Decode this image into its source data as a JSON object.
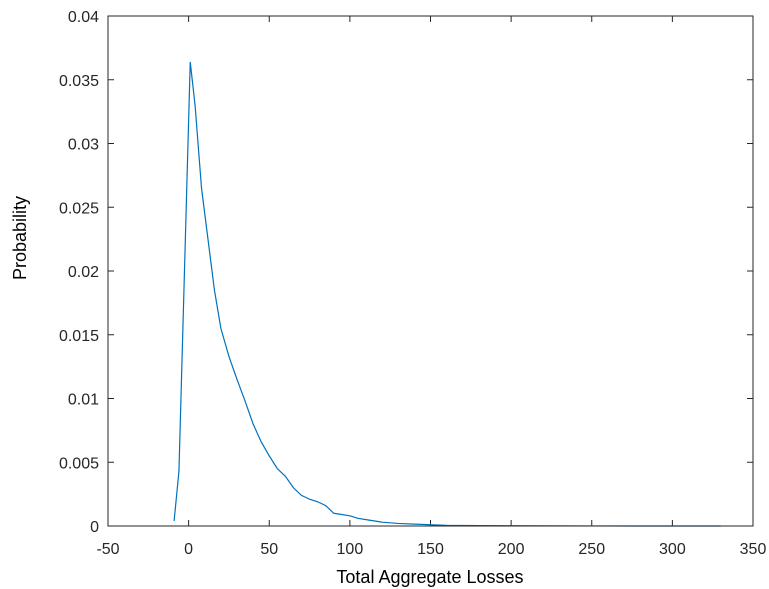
{
  "chart_data": {
    "type": "line",
    "title": "",
    "xlabel": "Total Aggregate Losses",
    "ylabel": "Probability",
    "xlim": [
      -50,
      350
    ],
    "ylim": [
      0,
      0.04
    ],
    "xticks": [
      -50,
      0,
      50,
      100,
      150,
      200,
      250,
      300,
      350
    ],
    "yticks": [
      0,
      0.005,
      0.01,
      0.015,
      0.02,
      0.025,
      0.03,
      0.035,
      0.04
    ],
    "xtick_labels": [
      "-50",
      "0",
      "50",
      "100",
      "150",
      "200",
      "250",
      "300",
      "350"
    ],
    "ytick_labels": [
      "0",
      "0.005",
      "0.01",
      "0.015",
      "0.02",
      "0.025",
      "0.03",
      "0.035",
      "0.04"
    ],
    "grid": false,
    "line_color": "#0072BD",
    "series": [
      {
        "x": [
          -9,
          -6,
          1,
          4,
          8,
          12,
          16,
          20,
          25,
          30,
          35,
          40,
          45,
          50,
          55,
          60,
          65,
          70,
          75,
          80,
          85,
          90,
          95,
          100,
          105,
          110,
          120,
          130,
          140,
          150,
          160,
          180,
          200,
          225,
          250,
          300,
          330
        ],
        "values": [
          0.0004,
          0.0043,
          0.0364,
          0.033,
          0.0265,
          0.0225,
          0.0185,
          0.0155,
          0.0133,
          0.0115,
          0.0098,
          0.008,
          0.0066,
          0.0055,
          0.0045,
          0.0039,
          0.003,
          0.0024,
          0.0021,
          0.0019,
          0.0016,
          0.001,
          0.0009,
          0.0008,
          0.0006,
          0.0005,
          0.0003,
          0.0002,
          0.00015,
          0.0001,
          5e-05,
          3e-05,
          2e-05,
          1e-05,
          5e-06,
          0,
          0
        ]
      }
    ]
  }
}
